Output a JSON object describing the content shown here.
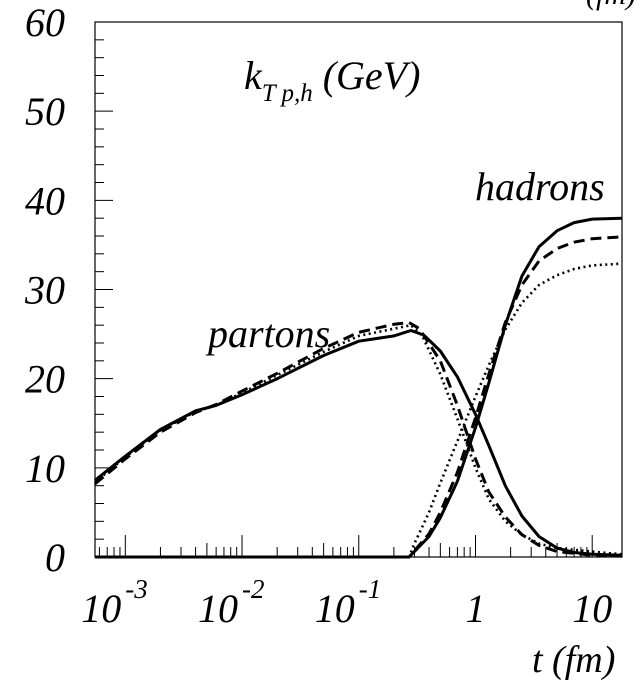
{
  "chart_data": {
    "type": "line",
    "title": "",
    "quantity_label": {
      "main": "k",
      "subscript": "T p,h",
      "unit": "(GeV)"
    },
    "xlabel": "t (fm)",
    "ylabel": "",
    "x_scale": "log",
    "xlim": [
      0.00055,
      18
    ],
    "ylim": [
      0,
      60
    ],
    "grid": false,
    "y_ticks": [
      "0",
      "10",
      "20",
      "30",
      "40",
      "50",
      "60"
    ],
    "x_ticks": [
      {
        "base": "10",
        "exp": "-3",
        "value": 0.001
      },
      {
        "base": "10",
        "exp": "-2",
        "value": 0.01
      },
      {
        "base": "10",
        "exp": "-1",
        "value": 0.1
      },
      {
        "base": "1",
        "exp": "",
        "value": 1
      },
      {
        "base": "10",
        "exp": "",
        "value": 10
      }
    ],
    "annotations": {
      "partons": {
        "text": "partons",
        "x": 0.0105,
        "y": 24.5
      },
      "hadrons": {
        "text": "hadrons",
        "x": 3.8,
        "y": 39.5
      },
      "top_clipped": "(fm)"
    },
    "series": [
      {
        "group": "partons",
        "style": "solid",
        "points": [
          [
            0.00055,
            8.6
          ],
          [
            0.001,
            11.3
          ],
          [
            0.002,
            14.3
          ],
          [
            0.004,
            16.4
          ],
          [
            0.006,
            17.0
          ],
          [
            0.01,
            18.2
          ],
          [
            0.02,
            20.0
          ],
          [
            0.05,
            22.6
          ],
          [
            0.1,
            24.2
          ],
          [
            0.2,
            24.8
          ],
          [
            0.28,
            25.4
          ],
          [
            0.36,
            24.9
          ],
          [
            0.5,
            23.1
          ],
          [
            0.7,
            20.2
          ],
          [
            1.0,
            16.0
          ],
          [
            1.3,
            12.5
          ],
          [
            1.8,
            8.0
          ],
          [
            2.5,
            4.6
          ],
          [
            3.5,
            2.3
          ],
          [
            5,
            1.0
          ],
          [
            7,
            0.5
          ],
          [
            10,
            0.3
          ],
          [
            18,
            0.2
          ]
        ]
      },
      {
        "group": "partons",
        "style": "dashed",
        "points": [
          [
            0.00055,
            8.2
          ],
          [
            0.001,
            11.0
          ],
          [
            0.002,
            14.0
          ],
          [
            0.004,
            16.2
          ],
          [
            0.006,
            17.1
          ],
          [
            0.01,
            18.6
          ],
          [
            0.02,
            20.6
          ],
          [
            0.05,
            23.4
          ],
          [
            0.1,
            25.2
          ],
          [
            0.2,
            26.1
          ],
          [
            0.27,
            26.3
          ],
          [
            0.33,
            25.6
          ],
          [
            0.5,
            22.0
          ],
          [
            0.7,
            17.0
          ],
          [
            1.0,
            11.0
          ],
          [
            1.3,
            7.3
          ],
          [
            1.8,
            4.5
          ],
          [
            2.5,
            2.5
          ],
          [
            3.5,
            1.3
          ],
          [
            5,
            0.6
          ],
          [
            10,
            0.2
          ],
          [
            18,
            0.1
          ]
        ]
      },
      {
        "group": "partons",
        "style": "dotted",
        "points": [
          [
            0.00055,
            8.4
          ],
          [
            0.001,
            11.2
          ],
          [
            0.002,
            14.2
          ],
          [
            0.004,
            16.3
          ],
          [
            0.006,
            17.0
          ],
          [
            0.01,
            18.4
          ],
          [
            0.02,
            20.4
          ],
          [
            0.05,
            23.0
          ],
          [
            0.1,
            24.8
          ],
          [
            0.2,
            25.6
          ],
          [
            0.28,
            26.0
          ],
          [
            0.35,
            24.8
          ],
          [
            0.5,
            20.5
          ],
          [
            0.7,
            15.5
          ],
          [
            1.0,
            10.0
          ],
          [
            1.3,
            6.5
          ],
          [
            1.8,
            4.0
          ],
          [
            2.5,
            2.5
          ],
          [
            3.5,
            1.5
          ],
          [
            5,
            1.0
          ],
          [
            10,
            0.6
          ],
          [
            18,
            0.3
          ]
        ]
      },
      {
        "group": "hadrons",
        "style": "solid",
        "points": [
          [
            0.00055,
            0
          ],
          [
            0.27,
            0
          ],
          [
            0.3,
            0.6
          ],
          [
            0.4,
            2.3
          ],
          [
            0.5,
            4.4
          ],
          [
            0.7,
            8.5
          ],
          [
            1.0,
            14.5
          ],
          [
            1.3,
            19.5
          ],
          [
            1.8,
            26.0
          ],
          [
            2.5,
            31.5
          ],
          [
            3.5,
            34.8
          ],
          [
            5,
            36.6
          ],
          [
            7,
            37.5
          ],
          [
            10,
            37.9
          ],
          [
            18,
            38.0
          ]
        ]
      },
      {
        "group": "hadrons",
        "style": "dashed",
        "points": [
          [
            0.00055,
            0
          ],
          [
            0.27,
            0
          ],
          [
            0.3,
            0.7
          ],
          [
            0.4,
            2.6
          ],
          [
            0.5,
            5.0
          ],
          [
            0.7,
            9.5
          ],
          [
            1.0,
            15.6
          ],
          [
            1.3,
            20.5
          ],
          [
            1.8,
            26.3
          ],
          [
            2.5,
            30.5
          ],
          [
            3.5,
            33.2
          ],
          [
            5,
            34.6
          ],
          [
            7,
            35.3
          ],
          [
            10,
            35.7
          ],
          [
            18,
            35.9
          ]
        ]
      },
      {
        "group": "hadrons",
        "style": "dotted",
        "points": [
          [
            0.00055,
            0
          ],
          [
            0.27,
            0
          ],
          [
            0.3,
            1.5
          ],
          [
            0.4,
            5.0
          ],
          [
            0.5,
            8.3
          ],
          [
            0.7,
            13.0
          ],
          [
            1.0,
            18.0
          ],
          [
            1.3,
            21.5
          ],
          [
            1.8,
            25.5
          ],
          [
            2.5,
            28.5
          ],
          [
            3.5,
            30.5
          ],
          [
            5,
            31.6
          ],
          [
            7,
            32.3
          ],
          [
            10,
            32.7
          ],
          [
            18,
            32.9
          ]
        ]
      }
    ]
  }
}
